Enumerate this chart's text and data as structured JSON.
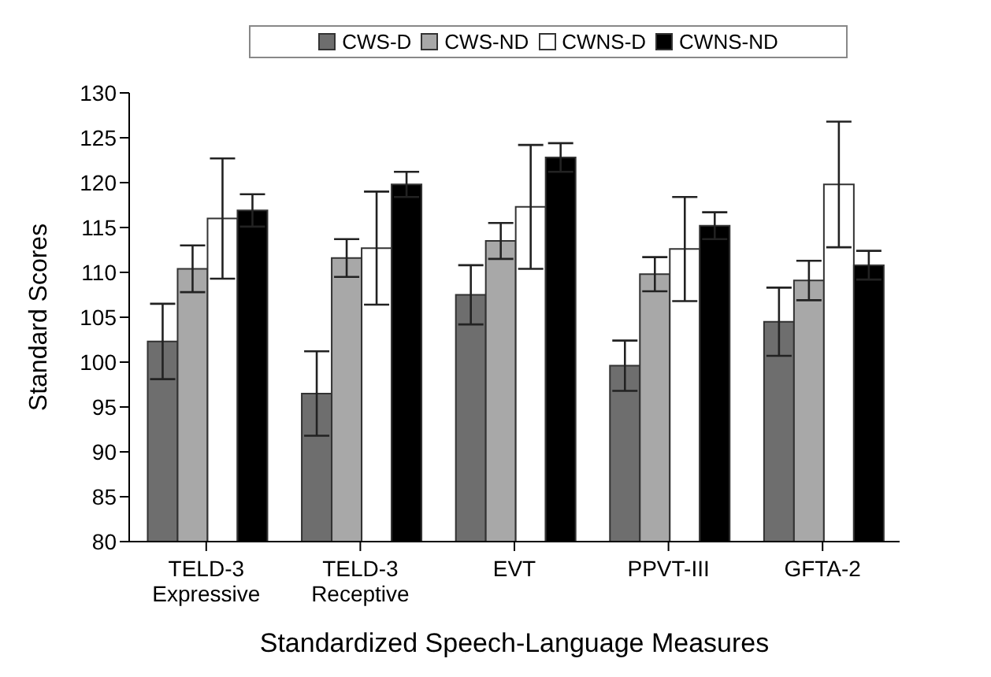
{
  "chart_data": {
    "type": "bar",
    "xlabel": "Standardized Speech-Language Measures",
    "ylabel": "Standard Scores",
    "categories": [
      "TELD-3 Expressive",
      "TELD-3 Receptive",
      "EVT",
      "PPVT-III",
      "GFTA-2"
    ],
    "series": [
      {
        "name": "CWS-D",
        "color": "#6e6e6e",
        "values": [
          102.3,
          96.5,
          107.5,
          99.6,
          104.5
        ],
        "errors": [
          4.2,
          4.7,
          3.3,
          2.8,
          3.8
        ]
      },
      {
        "name": "CWS-ND",
        "color": "#a8a8a8",
        "values": [
          110.4,
          111.6,
          113.5,
          109.8,
          109.1
        ],
        "errors": [
          2.6,
          2.1,
          2.0,
          1.9,
          2.2
        ]
      },
      {
        "name": "CWNS-D",
        "color": "#ffffff",
        "values": [
          116,
          112.7,
          117.3,
          112.6,
          119.8
        ],
        "errors": [
          6.7,
          6.3,
          6.9,
          5.8,
          7.0
        ]
      },
      {
        "name": "CWNS-ND",
        "color": "#000000",
        "values": [
          116.9,
          119.8,
          122.8,
          115.2,
          110.8
        ],
        "errors": [
          1.8,
          1.4,
          1.6,
          1.5,
          1.6
        ]
      }
    ],
    "ylim": [
      80,
      130
    ],
    "yticks": [
      80,
      85,
      90,
      95,
      100,
      105,
      110,
      115,
      120,
      125,
      130
    ],
    "grid": false,
    "legend": "top"
  }
}
